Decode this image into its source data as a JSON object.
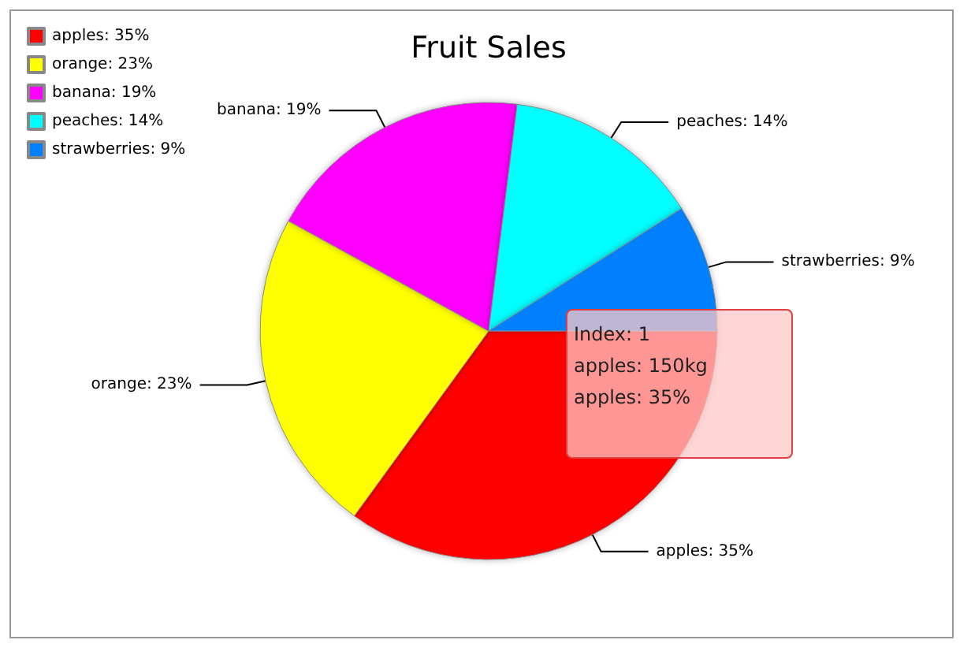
{
  "chart_data": {
    "type": "pie",
    "title": "Fruit Sales",
    "categories": [
      "apples",
      "orange",
      "banana",
      "peaches",
      "strawberries"
    ],
    "values": [
      35,
      23,
      19,
      14,
      9
    ],
    "value_labels": [
      "35%",
      "23%",
      "19%",
      "14%",
      "9%"
    ],
    "colors": [
      "#ff0000",
      "#ffff00",
      "#ff00ff",
      "#00ffff",
      "#0080ff"
    ],
    "legend": "top left",
    "annotations": [
      "Index: 1",
      "apples: 150kg",
      "apples: 35%"
    ]
  }
}
